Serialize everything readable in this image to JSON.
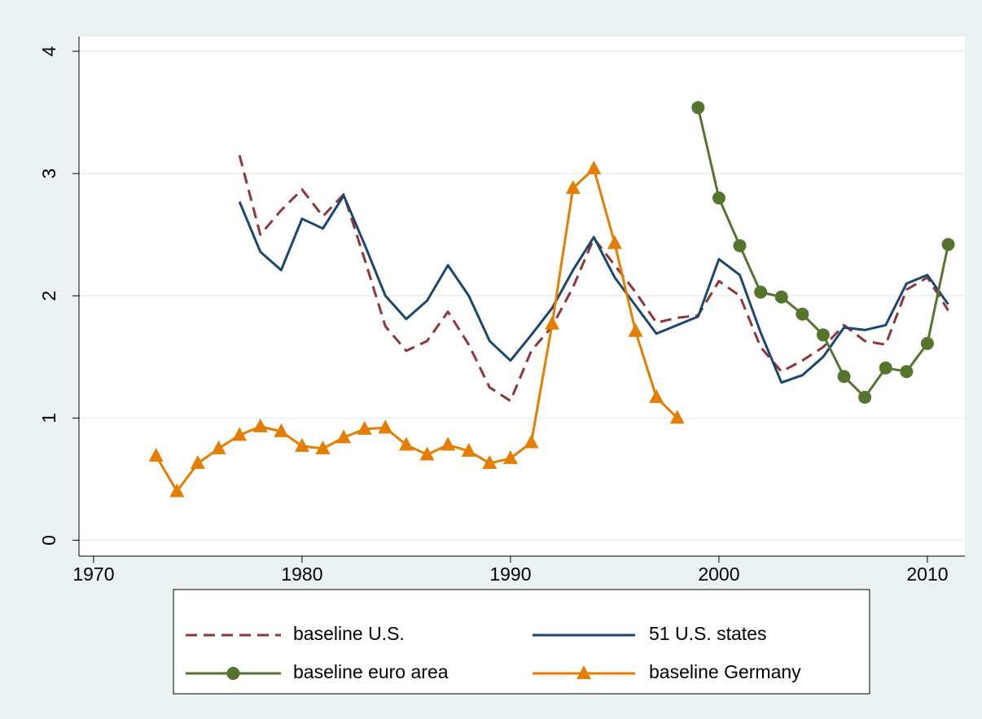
{
  "chart_data": {
    "type": "line",
    "xlim": [
      1969.3,
      2011.8
    ],
    "xticks": [
      1970,
      1980,
      1990,
      2000,
      2010
    ],
    "ylim": [
      -0.13,
      4.12
    ],
    "yticks": [
      0,
      1,
      2,
      3,
      4
    ],
    "grid": true,
    "series": [
      {
        "name": "baseline U.S.",
        "color": "#90353b",
        "dash": true,
        "x": [
          1977,
          1978,
          1979,
          1980,
          1981,
          1982,
          1983,
          1984,
          1985,
          1986,
          1987,
          1988,
          1989,
          1990,
          1991,
          1992,
          1993,
          1994,
          1995,
          1996,
          1997,
          1998,
          1999,
          2000,
          2001,
          2002,
          2003,
          2004,
          2005,
          2006,
          2007,
          2008,
          2009,
          2010,
          2011
        ],
        "values": [
          3.15,
          2.5,
          2.7,
          2.87,
          2.65,
          2.83,
          2.3,
          1.75,
          1.55,
          1.63,
          1.87,
          1.6,
          1.25,
          1.14,
          1.55,
          1.75,
          2.07,
          2.47,
          2.25,
          2.03,
          1.78,
          1.82,
          1.84,
          2.12,
          2.0,
          1.58,
          1.38,
          1.47,
          1.58,
          1.76,
          1.63,
          1.6,
          2.05,
          2.15,
          1.88
        ]
      },
      {
        "name": "51 U.S. states",
        "color": "#1a476f",
        "x": [
          1977,
          1978,
          1979,
          1980,
          1981,
          1982,
          1983,
          1984,
          1985,
          1986,
          1987,
          1988,
          1989,
          1990,
          1991,
          1992,
          1993,
          1994,
          1995,
          1996,
          1997,
          1998,
          1999,
          2000,
          2001,
          2002,
          2003,
          2004,
          2005,
          2006,
          2007,
          2008,
          2009,
          2010,
          2011
        ],
        "values": [
          2.77,
          2.36,
          2.21,
          2.63,
          2.55,
          2.82,
          2.42,
          2.0,
          1.81,
          1.96,
          2.25,
          2.0,
          1.63,
          1.47,
          1.68,
          1.9,
          2.21,
          2.48,
          2.15,
          1.92,
          1.69,
          1.76,
          1.83,
          2.3,
          2.17,
          1.7,
          1.29,
          1.35,
          1.5,
          1.74,
          1.72,
          1.76,
          2.1,
          2.17,
          1.93
        ]
      },
      {
        "name": "baseline euro area",
        "color": "#55752f",
        "marker": "circle",
        "x": [
          1999,
          2000,
          2001,
          2002,
          2003,
          2004,
          2005,
          2006,
          2007,
          2008,
          2009,
          2010,
          2011
        ],
        "values": [
          3.54,
          2.8,
          2.41,
          2.03,
          1.99,
          1.85,
          1.68,
          1.34,
          1.17,
          1.41,
          1.38,
          1.61,
          2.42
        ]
      },
      {
        "name": "baseline Germany",
        "color": "#e37e00",
        "marker": "triangle",
        "x": [
          1973,
          1974,
          1975,
          1976,
          1977,
          1978,
          1979,
          1980,
          1981,
          1982,
          1983,
          1984,
          1985,
          1986,
          1987,
          1988,
          1989,
          1990,
          1991,
          1992,
          1993,
          1994,
          1995,
          1996,
          1997,
          1998
        ],
        "values": [
          0.69,
          0.4,
          0.63,
          0.75,
          0.86,
          0.93,
          0.89,
          0.77,
          0.75,
          0.84,
          0.91,
          0.92,
          0.78,
          0.7,
          0.78,
          0.73,
          0.63,
          0.67,
          0.8,
          1.77,
          2.88,
          3.04,
          2.43,
          1.71,
          1.17,
          1.0
        ]
      }
    ]
  }
}
